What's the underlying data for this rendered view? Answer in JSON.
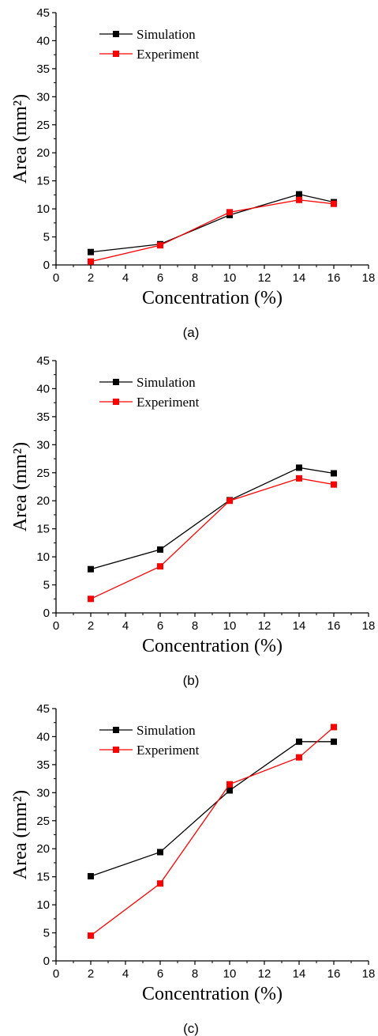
{
  "chart_data": [
    {
      "type": "line",
      "caption": "(a)",
      "xlabel": "Concentration (%)",
      "ylabel": "Area (mm²)",
      "xlim": [
        0,
        18
      ],
      "ylim": [
        0,
        45
      ],
      "xticks": [
        0,
        2,
        4,
        6,
        8,
        10,
        12,
        14,
        16,
        18
      ],
      "yticks": [
        0,
        5,
        10,
        15,
        20,
        25,
        30,
        35,
        40,
        45
      ],
      "legend_position": "top-left",
      "grid": false,
      "x": [
        2,
        6,
        10,
        14,
        16
      ],
      "series": [
        {
          "name": "Simulation",
          "color": "#000000",
          "values": [
            2.3,
            3.7,
            8.9,
            12.6,
            11.2
          ]
        },
        {
          "name": "Experiment",
          "color": "#ff0000",
          "values": [
            0.6,
            3.5,
            9.4,
            11.6,
            10.9
          ]
        }
      ]
    },
    {
      "type": "line",
      "caption": "(b)",
      "xlabel": "Concentration (%)",
      "ylabel": "Area (mm²)",
      "xlim": [
        0,
        18
      ],
      "ylim": [
        0,
        45
      ],
      "xticks": [
        0,
        2,
        4,
        6,
        8,
        10,
        12,
        14,
        16,
        18
      ],
      "yticks": [
        0,
        5,
        10,
        15,
        20,
        25,
        30,
        35,
        40,
        45
      ],
      "legend_position": "top-left",
      "grid": false,
      "x": [
        2,
        6,
        10,
        14,
        16
      ],
      "series": [
        {
          "name": "Simulation",
          "color": "#000000",
          "values": [
            7.8,
            11.3,
            20.1,
            25.9,
            24.9
          ]
        },
        {
          "name": "Experiment",
          "color": "#ff0000",
          "values": [
            2.5,
            8.3,
            20.0,
            24.0,
            22.9
          ]
        }
      ]
    },
    {
      "type": "line",
      "caption": "(c)",
      "xlabel": "Concentration (%)",
      "ylabel": "Area (mm²)",
      "xlim": [
        0,
        18
      ],
      "ylim": [
        0,
        45
      ],
      "xticks": [
        0,
        2,
        4,
        6,
        8,
        10,
        12,
        14,
        16,
        18
      ],
      "yticks": [
        0,
        5,
        10,
        15,
        20,
        25,
        30,
        35,
        40,
        45
      ],
      "legend_position": "top-left",
      "grid": false,
      "x": [
        2,
        6,
        10,
        14,
        16
      ],
      "series": [
        {
          "name": "Simulation",
          "color": "#000000",
          "values": [
            15.1,
            19.4,
            30.4,
            39.1,
            39.1
          ]
        },
        {
          "name": "Experiment",
          "color": "#ff0000",
          "values": [
            4.5,
            13.8,
            31.5,
            36.3,
            41.7
          ]
        }
      ]
    }
  ]
}
